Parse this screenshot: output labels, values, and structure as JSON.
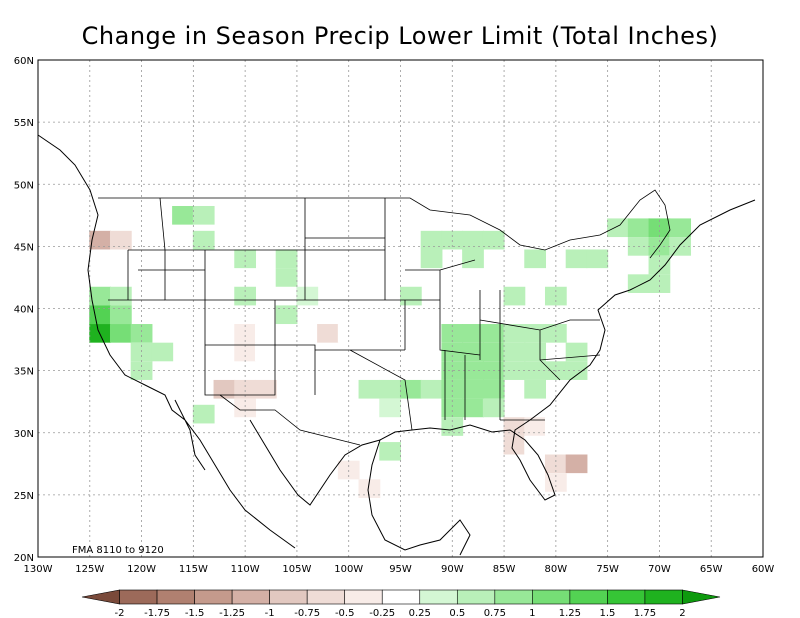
{
  "title": "Change in Season Precip Lower Limit (Total Inches)",
  "annotation": "FMA 8110 to 9120",
  "x_tick_labels": [
    "130W",
    "125W",
    "120W",
    "115W",
    "110W",
    "105W",
    "100W",
    "95W",
    "90W",
    "85W",
    "80W",
    "75W",
    "70W",
    "65W",
    "60W"
  ],
  "y_tick_labels": [
    "20N",
    "25N",
    "30N",
    "35N",
    "40N",
    "45N",
    "50N",
    "55N",
    "60N"
  ],
  "colorbar": {
    "labels": [
      "-2",
      "-1.75",
      "-1.5",
      "-1.25",
      "-1",
      "-0.75",
      "-0.5",
      "-0.25",
      "0.25",
      "0.5",
      "0.75",
      "1",
      "1.25",
      "1.5",
      "1.75",
      "2"
    ],
    "colors": [
      "#7a4a3a",
      "#9c6a5a",
      "#b08070",
      "#c49a8c",
      "#d4b0a6",
      "#e2c8c0",
      "#efdcd6",
      "#f8ece8",
      "#ffffff",
      "#d4f7d4",
      "#b9f0b9",
      "#98e898",
      "#76de76",
      "#53d253",
      "#36c536",
      "#1fb21f",
      "#0e9a0e"
    ],
    "zero_color": "#ffffff"
  },
  "grid_cells": [
    {
      "lon": -124,
      "lat": 45.5,
      "v": -1.25
    },
    {
      "lon": -122,
      "lat": 45.5,
      "v": -0.75
    },
    {
      "lon": -124,
      "lat": 44,
      "v": -0.25
    },
    {
      "lon": -120,
      "lat": 47.5,
      "v": -0.25
    },
    {
      "lon": -116,
      "lat": 47.5,
      "v": 0.75
    },
    {
      "lon": -114,
      "lat": 47.5,
      "v": 0.5
    },
    {
      "lon": -114,
      "lat": 45.5,
      "v": 0.5
    },
    {
      "lon": -124,
      "lat": 42.5,
      "v": -0.25
    },
    {
      "lon": -120,
      "lat": 42.5,
      "v": -0.25
    },
    {
      "lon": -124,
      "lat": 41,
      "v": 0.75
    },
    {
      "lon": -122,
      "lat": 41,
      "v": 0.5
    },
    {
      "lon": -124,
      "lat": 39.5,
      "v": 1.25
    },
    {
      "lon": -122,
      "lat": 39.5,
      "v": 0.75
    },
    {
      "lon": -124,
      "lat": 38,
      "v": 1.75
    },
    {
      "lon": -122,
      "lat": 38,
      "v": 1
    },
    {
      "lon": -120,
      "lat": 38,
      "v": 0.75
    },
    {
      "lon": -120,
      "lat": 36.5,
      "v": 0.5
    },
    {
      "lon": -118,
      "lat": 36.5,
      "v": 0.5
    },
    {
      "lon": -120,
      "lat": 35,
      "v": 0.5
    },
    {
      "lon": -116,
      "lat": 33.5,
      "v": -0.25
    },
    {
      "lon": -114,
      "lat": 31.5,
      "v": 0.5
    },
    {
      "lon": -110,
      "lat": 44,
      "v": 0.5
    },
    {
      "lon": -106,
      "lat": 44,
      "v": 0.5
    },
    {
      "lon": -106,
      "lat": 42.5,
      "v": 0.5
    },
    {
      "lon": -110,
      "lat": 41,
      "v": 0.5
    },
    {
      "lon": -104,
      "lat": 41,
      "v": 0.25
    },
    {
      "lon": -106,
      "lat": 39.5,
      "v": 0.5
    },
    {
      "lon": -110,
      "lat": 38,
      "v": -0.5
    },
    {
      "lon": -108,
      "lat": 38,
      "v": -0.25
    },
    {
      "lon": -112,
      "lat": 36.5,
      "v": -0.25
    },
    {
      "lon": -110,
      "lat": 36.5,
      "v": -0.5
    },
    {
      "lon": -108,
      "lat": 36.5,
      "v": -0.25
    },
    {
      "lon": -106,
      "lat": 36.5,
      "v": -0.25
    },
    {
      "lon": -104,
      "lat": 36.5,
      "v": -0.25
    },
    {
      "lon": -102,
      "lat": 38,
      "v": -0.75
    },
    {
      "lon": -100,
      "lat": 38,
      "v": -0.25
    },
    {
      "lon": -112,
      "lat": 33.5,
      "v": -1
    },
    {
      "lon": -110,
      "lat": 33.5,
      "v": -0.75
    },
    {
      "lon": -108,
      "lat": 33.5,
      "v": -0.75
    },
    {
      "lon": -104,
      "lat": 33.5,
      "v": -0.25
    },
    {
      "lon": -102,
      "lat": 35,
      "v": -0.25
    },
    {
      "lon": -110,
      "lat": 32,
      "v": -0.5
    },
    {
      "lon": -106,
      "lat": 32,
      "v": -0.25
    },
    {
      "lon": -98,
      "lat": 33.5,
      "v": 0.5
    },
    {
      "lon": -96,
      "lat": 33.5,
      "v": 0.5
    },
    {
      "lon": -94,
      "lat": 33.5,
      "v": 0.75
    },
    {
      "lon": -96,
      "lat": 32,
      "v": 0.25
    },
    {
      "lon": -96,
      "lat": 28.5,
      "v": 0.5
    },
    {
      "lon": -100,
      "lat": 27,
      "v": -0.5
    },
    {
      "lon": -96,
      "lat": 27,
      "v": -0.25
    },
    {
      "lon": -98,
      "lat": 25.5,
      "v": -0.5
    },
    {
      "lon": -92,
      "lat": 45.5,
      "v": 0.5
    },
    {
      "lon": -90,
      "lat": 45.5,
      "v": 0.5
    },
    {
      "lon": -88,
      "lat": 45.5,
      "v": 0.5
    },
    {
      "lon": -86,
      "lat": 45.5,
      "v": 0.5
    },
    {
      "lon": -82,
      "lat": 44,
      "v": 0.5
    },
    {
      "lon": -78,
      "lat": 44,
      "v": 0.5
    },
    {
      "lon": -76,
      "lat": 44,
      "v": 0.5
    },
    {
      "lon": -92,
      "lat": 44,
      "v": 0.5
    },
    {
      "lon": -88,
      "lat": 44,
      "v": 0.5
    },
    {
      "lon": -94,
      "lat": 41,
      "v": 0.5
    },
    {
      "lon": -84,
      "lat": 41,
      "v": 0.5
    },
    {
      "lon": -80,
      "lat": 41,
      "v": 0.5
    },
    {
      "lon": -90,
      "lat": 38,
      "v": 0.75
    },
    {
      "lon": -88,
      "lat": 38,
      "v": 0.75
    },
    {
      "lon": -86,
      "lat": 38,
      "v": 0.75
    },
    {
      "lon": -84,
      "lat": 38,
      "v": 0.5
    },
    {
      "lon": -82,
      "lat": 38,
      "v": 0.5
    },
    {
      "lon": -80,
      "lat": 38,
      "v": 0.5
    },
    {
      "lon": -90,
      "lat": 36.5,
      "v": 0.75
    },
    {
      "lon": -88,
      "lat": 36.5,
      "v": 0.75
    },
    {
      "lon": -86,
      "lat": 36.5,
      "v": 0.75
    },
    {
      "lon": -84,
      "lat": 36.5,
      "v": 0.5
    },
    {
      "lon": -82,
      "lat": 36.5,
      "v": 0.5
    },
    {
      "lon": -78,
      "lat": 36.5,
      "v": 0.5
    },
    {
      "lon": -90,
      "lat": 35,
      "v": 0.75
    },
    {
      "lon": -88,
      "lat": 35,
      "v": 0.75
    },
    {
      "lon": -86,
      "lat": 35,
      "v": 0.75
    },
    {
      "lon": -84,
      "lat": 35,
      "v": 0.5
    },
    {
      "lon": -82,
      "lat": 35,
      "v": 0.5
    },
    {
      "lon": -80,
      "lat": 35,
      "v": 0.5
    },
    {
      "lon": -78,
      "lat": 35,
      "v": 0.5
    },
    {
      "lon": -92,
      "lat": 33.5,
      "v": 0.5
    },
    {
      "lon": -90,
      "lat": 33.5,
      "v": 0.75
    },
    {
      "lon": -88,
      "lat": 33.5,
      "v": 0.75
    },
    {
      "lon": -86,
      "lat": 33.5,
      "v": 0.75
    },
    {
      "lon": -82,
      "lat": 33.5,
      "v": 0.5
    },
    {
      "lon": -90,
      "lat": 32,
      "v": 0.75
    },
    {
      "lon": -88,
      "lat": 32,
      "v": 0.75
    },
    {
      "lon": -86,
      "lat": 32,
      "v": 0.5
    },
    {
      "lon": -90,
      "lat": 30.5,
      "v": 0.5
    },
    {
      "lon": -84,
      "lat": 30.5,
      "v": -0.75
    },
    {
      "lon": -82,
      "lat": 30.5,
      "v": -0.5
    },
    {
      "lon": -80,
      "lat": 30.5,
      "v": -0.25
    },
    {
      "lon": -84,
      "lat": 29,
      "v": -0.75
    },
    {
      "lon": -82,
      "lat": 29,
      "v": -0.25
    },
    {
      "lon": -80,
      "lat": 27.5,
      "v": -0.75
    },
    {
      "lon": -78,
      "lat": 27.5,
      "v": -1.25
    },
    {
      "lon": -80,
      "lat": 26,
      "v": -0.5
    },
    {
      "lon": -74,
      "lat": 46.5,
      "v": 0.5
    },
    {
      "lon": -72,
      "lat": 46.5,
      "v": 0.75
    },
    {
      "lon": -70,
      "lat": 46.5,
      "v": 1
    },
    {
      "lon": -68,
      "lat": 46.5,
      "v": 0.75
    },
    {
      "lon": -72,
      "lat": 45,
      "v": 0.5
    },
    {
      "lon": -70,
      "lat": 45,
      "v": 0.75
    },
    {
      "lon": -68,
      "lat": 45,
      "v": 0.5
    },
    {
      "lon": -70,
      "lat": 43.5,
      "v": 0.5
    },
    {
      "lon": -72,
      "lat": 42,
      "v": 0.5
    },
    {
      "lon": -70,
      "lat": 42,
      "v": 0.5
    }
  ]
}
